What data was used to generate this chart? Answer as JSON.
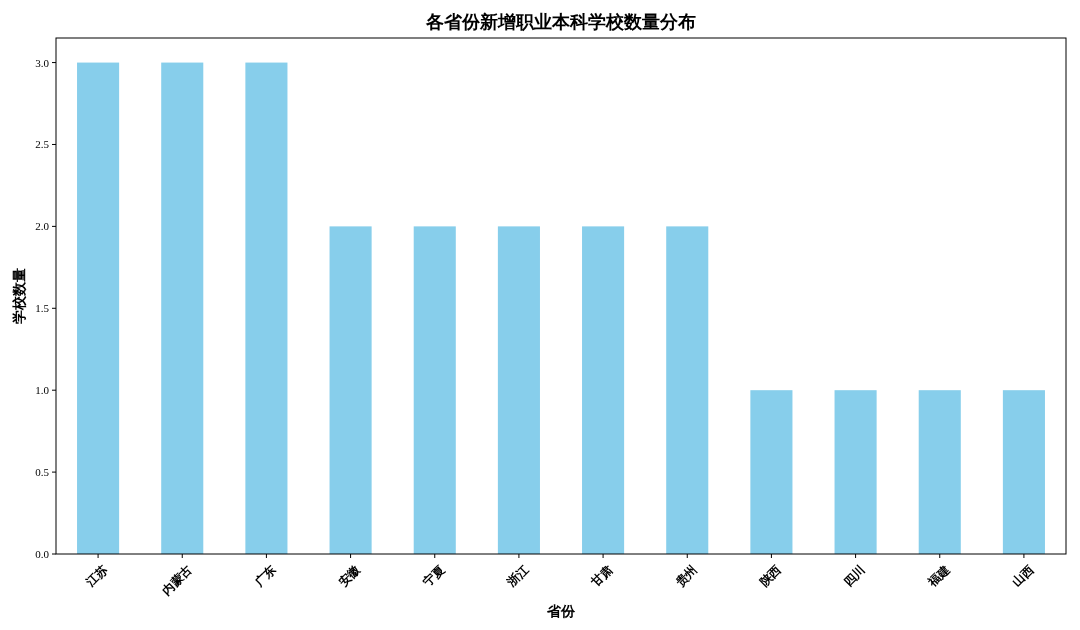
{
  "chart_data": {
    "type": "bar",
    "title": "各省份新增职业本科学校数量分布",
    "xlabel": "省份",
    "ylabel": "学校数量",
    "categories": [
      "江苏",
      "内蒙古",
      "广东",
      "安徽",
      "宁夏",
      "浙江",
      "甘肃",
      "贵州",
      "陕西",
      "四川",
      "福建",
      "山西"
    ],
    "values": [
      3,
      3,
      3,
      2,
      2,
      2,
      2,
      2,
      1,
      1,
      1,
      1
    ],
    "color": "#87ceeb",
    "ylim": [
      0,
      3.15
    ],
    "yticks": [
      {
        "value": 0,
        "label": "0.0"
      },
      {
        "value": 0.5,
        "label": "0.5"
      },
      {
        "value": 1,
        "label": "1.0"
      },
      {
        "value": 1.5,
        "label": "1.5"
      },
      {
        "value": 2,
        "label": "2.0"
      },
      {
        "value": 2.5,
        "label": "2.5"
      },
      {
        "value": 3,
        "label": "3.0"
      }
    ]
  }
}
